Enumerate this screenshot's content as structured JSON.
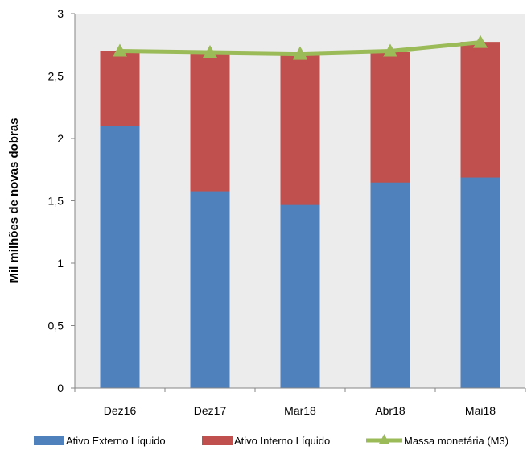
{
  "chart_data": {
    "type": "bar",
    "stacked": true,
    "categories": [
      "Dez16",
      "Dez17",
      "Mar18",
      "Abr18",
      "Mai18"
    ],
    "ylabel": "Mil milhões de novas dobras",
    "xlabel": "",
    "ylim": [
      0,
      3
    ],
    "yticks": [
      "0",
      "0,5",
      "1",
      "1,5",
      "2",
      "2,5",
      "3"
    ],
    "ytick_values": [
      0,
      0.5,
      1,
      1.5,
      2,
      2.5,
      3
    ],
    "grid": false,
    "legend_position": "bottom",
    "series": [
      {
        "name": "Ativo Externo Líquido",
        "kind": "bar",
        "color": "#4f81bd",
        "values": [
          2.1,
          1.58,
          1.47,
          1.65,
          1.69
        ]
      },
      {
        "name": "Ativo Interno Líquido",
        "kind": "bar",
        "color": "#c0504d",
        "values": [
          0.6,
          1.11,
          1.2,
          1.04,
          1.08
        ]
      },
      {
        "name": "Massa monetária (M3)",
        "kind": "line",
        "color": "#9bbb59",
        "values": [
          2.7,
          2.69,
          2.68,
          2.7,
          2.77
        ]
      }
    ]
  }
}
